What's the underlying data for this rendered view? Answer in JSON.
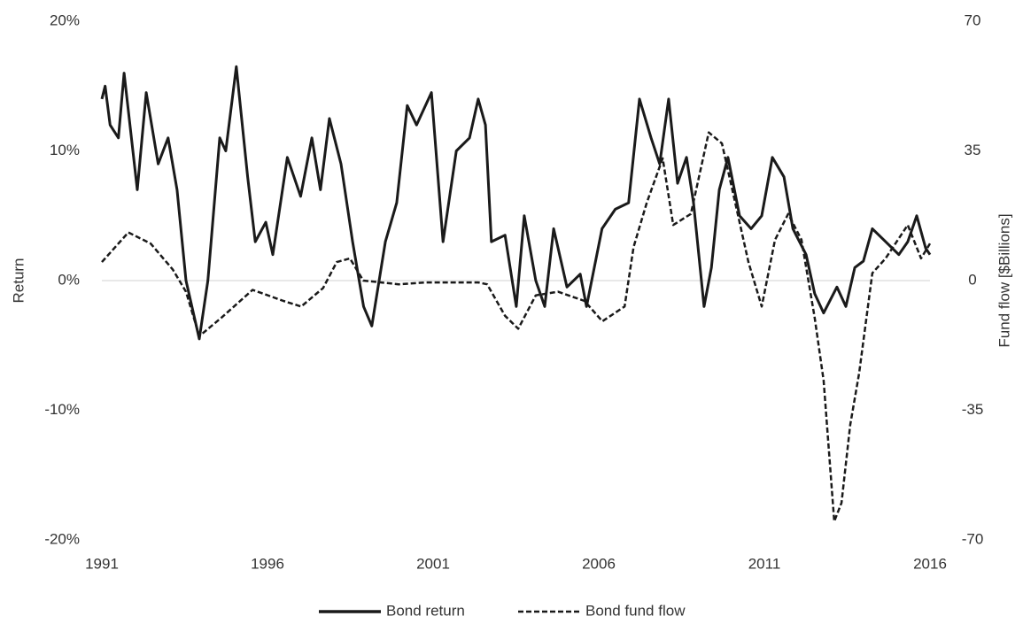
{
  "chart_data": {
    "type": "line",
    "xlabel": null,
    "ylabel": "Return",
    "y2label": "Fund flow [$Billions]",
    "xlim": [
      1991,
      2016
    ],
    "xticks": [
      1991,
      1996,
      2001,
      2006,
      2011,
      2016
    ],
    "ylim": [
      -20,
      20
    ],
    "yticks": [
      {
        "value": 20,
        "label": "20%"
      },
      {
        "value": 10,
        "label": "10%"
      },
      {
        "value": 0,
        "label": "0%"
      },
      {
        "value": -10,
        "label": "-10%"
      },
      {
        "value": -20,
        "label": "-20%"
      }
    ],
    "y2lim": [
      -70,
      70
    ],
    "y2ticks": [
      70,
      35,
      0,
      -35,
      -70
    ],
    "legend": "bottom",
    "series": [
      {
        "name": "Bond return",
        "color": "#1a1a1a",
        "dashed": false,
        "x": [
          1991.0,
          1991.1,
          1991.25,
          1991.5,
          1991.67,
          1992.07,
          1992.34,
          1992.7,
          1993.0,
          1993.27,
          1993.54,
          1993.94,
          1994.2,
          1994.56,
          1994.74,
          1995.06,
          1995.4,
          1995.63,
          1995.95,
          1996.16,
          1996.6,
          1997.0,
          1997.34,
          1997.6,
          1997.87,
          1998.22,
          1998.57,
          1998.9,
          1999.15,
          1999.56,
          1999.9,
          2000.22,
          2000.5,
          2000.95,
          2001.3,
          2001.7,
          2002.1,
          2002.36,
          2002.58,
          2002.76,
          2003.17,
          2003.51,
          2003.75,
          2004.1,
          2004.37,
          2004.64,
          2005.04,
          2005.44,
          2005.63,
          2006.1,
          2006.5,
          2006.9,
          2007.23,
          2007.58,
          2007.84,
          2008.11,
          2008.38,
          2008.65,
          2008.86,
          2009.18,
          2009.4,
          2009.64,
          2009.9,
          2010.25,
          2010.6,
          2010.92,
          2011.24,
          2011.59,
          2011.86,
          2012.26,
          2012.52,
          2012.79,
          2013.19,
          2013.46,
          2013.73,
          2013.99,
          2014.26,
          2014.66,
          2015.06,
          2015.33,
          2015.6,
          2015.87,
          2016.0
        ],
        "values": [
          14,
          15,
          12,
          11,
          16,
          7,
          14.5,
          9,
          11,
          7,
          0,
          -4.5,
          0,
          11,
          10,
          16.5,
          8,
          3,
          4.5,
          2,
          9.5,
          6.5,
          11,
          7,
          12.5,
          9,
          3,
          -2,
          -3.5,
          3,
          6,
          13.5,
          12,
          14.5,
          3,
          10,
          11,
          14,
          12,
          3,
          3.5,
          -2,
          5,
          0,
          -2,
          4,
          -0.5,
          0.5,
          -2,
          4,
          5.5,
          6,
          14,
          11,
          9,
          14,
          7.5,
          9.5,
          6,
          -2,
          1,
          7,
          9.5,
          5,
          4,
          5,
          9.5,
          8,
          4,
          2,
          -1,
          -2.5,
          -0.5,
          -2,
          1,
          1.5,
          4,
          3,
          2,
          3,
          5,
          2.5,
          2
        ]
      },
      {
        "name": "Bond fund flow",
        "color": "#1a1a1a",
        "dashed": true,
        "axis": "y2",
        "x": [
          1991.0,
          1991.8,
          1992.47,
          1993.14,
          1993.54,
          1993.94,
          1994.61,
          1995.55,
          1996.48,
          1997.02,
          1997.68,
          1998.09,
          1998.49,
          1998.89,
          1999.96,
          2000.76,
          2002.36,
          2002.63,
          2003.17,
          2003.57,
          2004.1,
          2004.77,
          2005.57,
          2006.11,
          2006.78,
          2007.05,
          2007.45,
          2007.93,
          2008.25,
          2008.78,
          2009.32,
          2009.72,
          2010.12,
          2010.52,
          2010.92,
          2011.32,
          2011.72,
          2012.12,
          2012.52,
          2012.79,
          2013.11,
          2013.33,
          2013.59,
          2013.86,
          2014.26,
          2014.66,
          2015.33,
          2015.73,
          2016.0
        ],
        "values": [
          5,
          13,
          10,
          3,
          -3,
          -15,
          -10,
          -2.5,
          -5.5,
          -7,
          -2,
          5,
          6,
          0,
          -1,
          -0.5,
          -0.5,
          -1,
          -9.5,
          -13,
          -4,
          -3,
          -5.5,
          -11,
          -7,
          9,
          21,
          33,
          15,
          18,
          40,
          37,
          21,
          5,
          -7,
          11,
          18,
          11,
          -10,
          -27,
          -65,
          -60,
          -39,
          -25,
          2,
          6,
          15,
          6,
          10
        ]
      }
    ]
  }
}
